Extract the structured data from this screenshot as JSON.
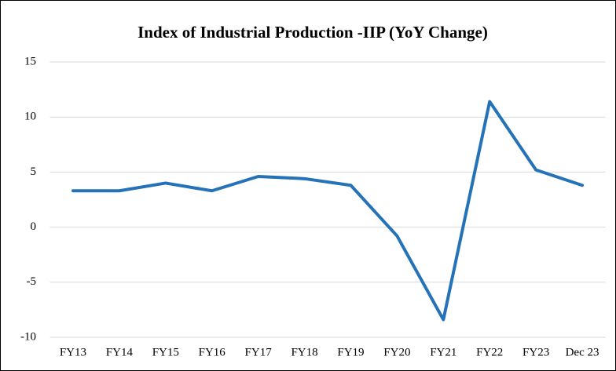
{
  "chart_data": {
    "type": "line",
    "title": "Index of Industrial Production -IIP (YoY Change)",
    "categories": [
      "FY13",
      "FY14",
      "FY15",
      "FY16",
      "FY17",
      "FY18",
      "FY19",
      "FY20",
      "FY21",
      "FY22",
      "FY23",
      "Dec 23"
    ],
    "values": [
      3.3,
      3.3,
      4.0,
      3.3,
      4.6,
      4.4,
      3.8,
      -0.8,
      -8.4,
      11.4,
      5.2,
      3.8
    ],
    "color": "#2472b8",
    "ylim": [
      -10,
      15
    ],
    "yticks": [
      -10,
      -5,
      0,
      5,
      10,
      15
    ],
    "grid": true
  }
}
